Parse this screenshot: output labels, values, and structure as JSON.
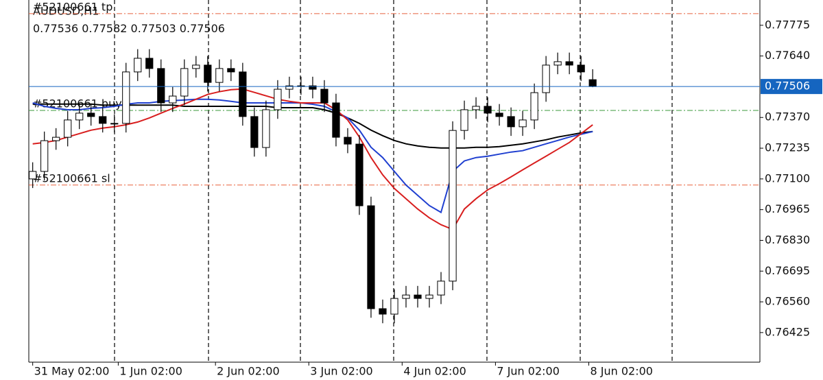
{
  "chart_data": {
    "type": "candlestick",
    "title": "AUDUSD,H1",
    "xlim": [
      -1,
      187
    ],
    "ylim": [
      0.76295,
      0.77886
    ],
    "xticks": [
      {
        "value": 0,
        "label": "31 May 02:00"
      },
      {
        "value": 22,
        "label": "1 Jun 02:00"
      },
      {
        "value": 47,
        "label": "2 Jun 02:00"
      },
      {
        "value": 71,
        "label": "3 Jun 02:00"
      },
      {
        "value": 95,
        "label": "4 Jun 02:00"
      },
      {
        "value": 119,
        "label": "7 Jun 02:00"
      },
      {
        "value": 143,
        "label": "8 Jun 02:00"
      }
    ],
    "yticks": [
      0.77775,
      {
        "value": 0.7764,
        "label": "0.77640"
      },
      {
        "value": 0.7737,
        "label": "0.77370"
      },
      0.77235,
      {
        "value": 0.771,
        "label": "0.77100"
      },
      0.76965,
      {
        "value": 0.7683,
        "label": "0.76830"
      },
      0.76695,
      {
        "value": 0.7656,
        "label": "0.76560"
      },
      0.76425
    ],
    "x": [
      0,
      3,
      6,
      9,
      12,
      15,
      18,
      21,
      24,
      27,
      30,
      33,
      36,
      39,
      42,
      45,
      48,
      51,
      54,
      57,
      60,
      63,
      66,
      69,
      72,
      75,
      78,
      81,
      84,
      87,
      90,
      93,
      96,
      99,
      102,
      105,
      108,
      111,
      114,
      117,
      120,
      123,
      126,
      129,
      132,
      135,
      138,
      141,
      144
    ],
    "open": [
      0.771,
      0.77133,
      0.77268,
      0.77283,
      0.77359,
      0.77389,
      0.77374,
      0.77344,
      0.77344,
      0.7757,
      0.7763,
      0.77585,
      0.77434,
      0.77464,
      0.77585,
      0.776,
      0.77524,
      0.77585,
      0.7757,
      0.77374,
      0.77238,
      0.77404,
      0.77494,
      0.77509,
      0.77509,
      0.77494,
      0.77434,
      0.77283,
      0.77253,
      0.76982,
      0.7653,
      0.76506,
      0.76575,
      0.7659,
      0.76575,
      0.7659,
      0.76651,
      0.77313,
      0.77404,
      0.77419,
      0.77389,
      0.77374,
      0.77329,
      0.77359,
      0.77479,
      0.776,
      0.77615,
      0.776,
      0.77536
    ],
    "high": [
      0.77173,
      0.77308,
      0.77323,
      0.77399,
      0.77429,
      0.77429,
      0.77414,
      0.77384,
      0.7761,
      0.7767,
      0.7767,
      0.77625,
      0.77504,
      0.77625,
      0.7764,
      0.7764,
      0.77625,
      0.77625,
      0.7761,
      0.77414,
      0.77444,
      0.77534,
      0.77549,
      0.77549,
      0.77549,
      0.77534,
      0.77474,
      0.77323,
      0.77293,
      0.77022,
      0.7657,
      0.76615,
      0.7663,
      0.7663,
      0.7663,
      0.76691,
      0.77353,
      0.77444,
      0.77459,
      0.77459,
      0.77429,
      0.77414,
      0.77399,
      0.77519,
      0.7764,
      0.77655,
      0.77655,
      0.7764,
      0.77582
    ],
    "low": [
      0.7706,
      0.77093,
      0.77228,
      0.77243,
      0.77319,
      0.77334,
      0.77304,
      0.77304,
      0.77304,
      0.7753,
      0.77545,
      0.77394,
      0.77394,
      0.77424,
      0.77545,
      0.77484,
      0.77484,
      0.7753,
      0.77334,
      0.77198,
      0.77198,
      0.77364,
      0.77454,
      0.77469,
      0.77454,
      0.77394,
      0.77243,
      0.77213,
      0.76942,
      0.7649,
      0.76466,
      0.76466,
      0.76535,
      0.76535,
      0.76535,
      0.7655,
      0.76611,
      0.77273,
      0.77364,
      0.77349,
      0.77334,
      0.77289,
      0.77289,
      0.77319,
      0.77439,
      0.7756,
      0.7756,
      0.7753,
      0.77503
    ],
    "close": [
      0.77133,
      0.77268,
      0.77283,
      0.77359,
      0.77389,
      0.77374,
      0.77344,
      0.77344,
      0.7757,
      0.7763,
      0.77585,
      0.77434,
      0.77464,
      0.77585,
      0.776,
      0.77524,
      0.77585,
      0.7757,
      0.77374,
      0.77238,
      0.77404,
      0.77494,
      0.77509,
      0.77509,
      0.77494,
      0.77434,
      0.77283,
      0.77253,
      0.76982,
      0.7653,
      0.76506,
      0.76575,
      0.7659,
      0.76575,
      0.7659,
      0.76651,
      0.77313,
      0.77404,
      0.77419,
      0.77389,
      0.77374,
      0.77329,
      0.77359,
      0.77479,
      0.776,
      0.77615,
      0.776,
      0.7757,
      0.77506
    ],
    "series": [
      {
        "color": "#000000",
        "values": [
          0.77429,
          0.77429,
          0.77429,
          0.77429,
          0.77429,
          0.77429,
          0.77424,
          0.77424,
          0.77424,
          0.77424,
          0.77424,
          0.77424,
          0.77424,
          0.77419,
          0.77419,
          0.77419,
          0.77419,
          0.77419,
          0.77419,
          0.77419,
          0.77419,
          0.77413,
          0.77413,
          0.77413,
          0.77413,
          0.77404,
          0.77389,
          0.77368,
          0.77344,
          0.77314,
          0.7729,
          0.77269,
          0.77254,
          0.77245,
          0.77239,
          0.77236,
          0.77236,
          0.77236,
          0.77239,
          0.77239,
          0.77242,
          0.77248,
          0.77254,
          0.77263,
          0.77272,
          0.77284,
          0.77293,
          0.77302,
          0.77308
        ]
      },
      {
        "color": "#1f3fd0",
        "values": [
          0.77434,
          0.77419,
          0.7741,
          0.77404,
          0.77404,
          0.7741,
          0.77413,
          0.77419,
          0.77428,
          0.77434,
          0.77434,
          0.77441,
          0.77444,
          0.77447,
          0.7745,
          0.7745,
          0.77447,
          0.77441,
          0.77434,
          0.77434,
          0.77434,
          0.77434,
          0.77434,
          0.77434,
          0.77428,
          0.77419,
          0.77395,
          0.77368,
          0.77314,
          0.77239,
          0.77194,
          0.77133,
          0.77073,
          0.77028,
          0.76983,
          0.76953,
          0.77133,
          0.77179,
          0.77194,
          0.772,
          0.77209,
          0.77218,
          0.77224,
          0.77239,
          0.77254,
          0.77269,
          0.77284,
          0.77296,
          0.77308
        ]
      },
      {
        "color": "#d81e1e",
        "values": [
          0.77254,
          0.7726,
          0.77269,
          0.77284,
          0.77299,
          0.77314,
          0.77323,
          0.77329,
          0.77338,
          0.7735,
          0.77368,
          0.77389,
          0.7741,
          0.77429,
          0.7745,
          0.77471,
          0.77483,
          0.77492,
          0.77495,
          0.7748,
          0.77465,
          0.7745,
          0.77441,
          0.77434,
          0.77434,
          0.77434,
          0.77404,
          0.77359,
          0.77284,
          0.77194,
          0.77118,
          0.77058,
          0.77013,
          0.76968,
          0.76929,
          0.76899,
          0.76878,
          0.76968,
          0.77013,
          0.77052,
          0.77079,
          0.77109,
          0.7714,
          0.7717,
          0.772,
          0.7723,
          0.7726,
          0.77299,
          0.77338
        ]
      }
    ],
    "levels": [
      {
        "label": "#52100661 tp",
        "value": 0.77826,
        "color": "#e8603c"
      },
      {
        "label": "#52100661 buy",
        "value": 0.77401,
        "color": "#3a9a3a"
      },
      {
        "label": "#52100661 sl",
        "value": 0.77073,
        "color": "#e8603c"
      }
    ],
    "price_color": "#1565c0"
  }
}
